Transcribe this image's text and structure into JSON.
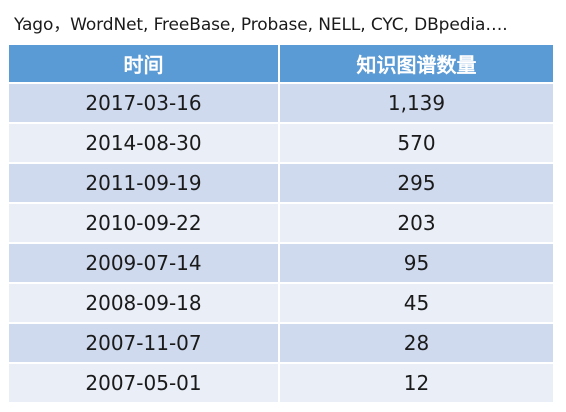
{
  "caption": "Yago，WordNet, FreeBase, Probase, NELL, CYC, DBpedia….",
  "table": {
    "headers": {
      "date": "时间",
      "count": "知识图谱数量"
    },
    "rows": [
      {
        "date": "2017-03-16",
        "count": "1,139"
      },
      {
        "date": "2014-08-30",
        "count": "570"
      },
      {
        "date": "2011-09-19",
        "count": "295"
      },
      {
        "date": "2010-09-22",
        "count": "203"
      },
      {
        "date": "2009-07-14",
        "count": "95"
      },
      {
        "date": "2008-09-18",
        "count": "45"
      },
      {
        "date": "2007-11-07",
        "count": "28"
      },
      {
        "date": "2007-05-01",
        "count": "12"
      }
    ]
  },
  "colors": {
    "header_bg": "#5b9bd5",
    "row_dark": "#cfdaee",
    "row_light": "#e9eef7"
  }
}
